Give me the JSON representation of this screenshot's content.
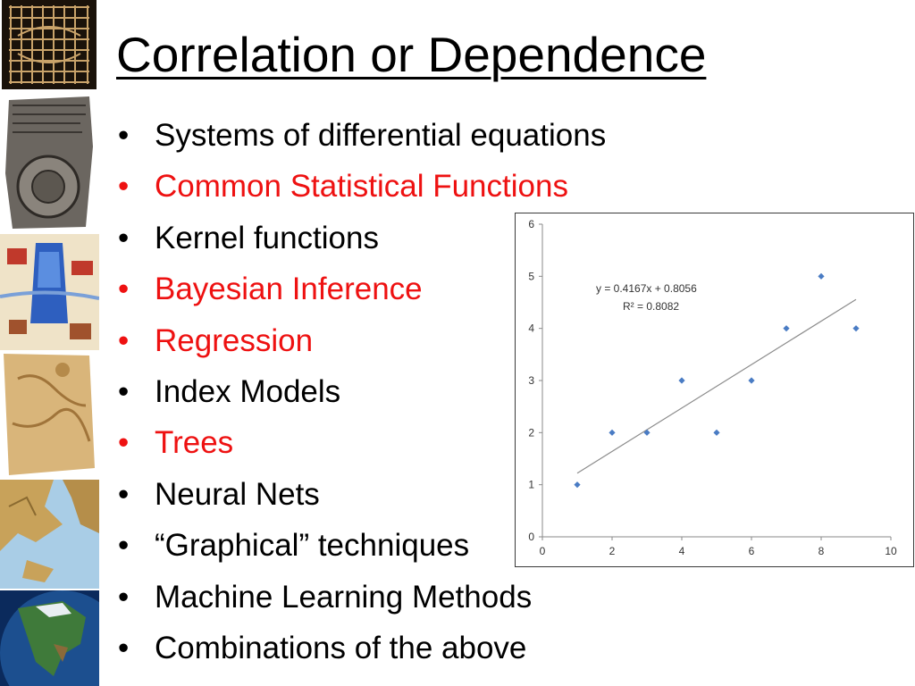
{
  "slide": {
    "title": "Correlation or Dependence",
    "bullets": [
      {
        "text": "Systems of differential equations",
        "color": "#000000"
      },
      {
        "text": "Common Statistical Functions",
        "color": "#ee1111"
      },
      {
        "text": "Kernel functions",
        "color": "#000000"
      },
      {
        "text": "Bayesian Inference",
        "color": "#ee1111"
      },
      {
        "text": "Regression",
        "color": "#ee1111"
      },
      {
        "text": "Index Models",
        "color": "#000000"
      },
      {
        "text": "Trees",
        "color": "#ee1111"
      },
      {
        "text": "Neural Nets",
        "color": "#000000"
      },
      {
        "text": "“Graphical” techniques",
        "color": "#000000"
      },
      {
        "text": "Machine Learning Methods",
        "color": "#000000"
      },
      {
        "text": "Combinations of the above",
        "color": "#000000"
      }
    ],
    "bullet_glyph": "•"
  },
  "chart_data": {
    "type": "scatter",
    "x": [
      1,
      2,
      3,
      4,
      5,
      6,
      7,
      8,
      9
    ],
    "y": [
      1,
      2,
      2,
      3,
      2,
      3,
      4,
      5,
      4
    ],
    "xlim": [
      0,
      10
    ],
    "ylim": [
      0,
      6
    ],
    "xticks": [
      0,
      2,
      4,
      6,
      8,
      10
    ],
    "yticks": [
      0,
      1,
      2,
      3,
      4,
      5,
      6
    ],
    "grid": false,
    "trendline": {
      "slope": 0.4167,
      "intercept": 0.8056,
      "x_range": [
        1,
        9
      ]
    },
    "annotations": [
      "y = 0.4167x + 0.8056",
      "R² = 0.8082"
    ],
    "marker_color": "#4a7cc4",
    "trendline_color": "#8c8c8c"
  }
}
